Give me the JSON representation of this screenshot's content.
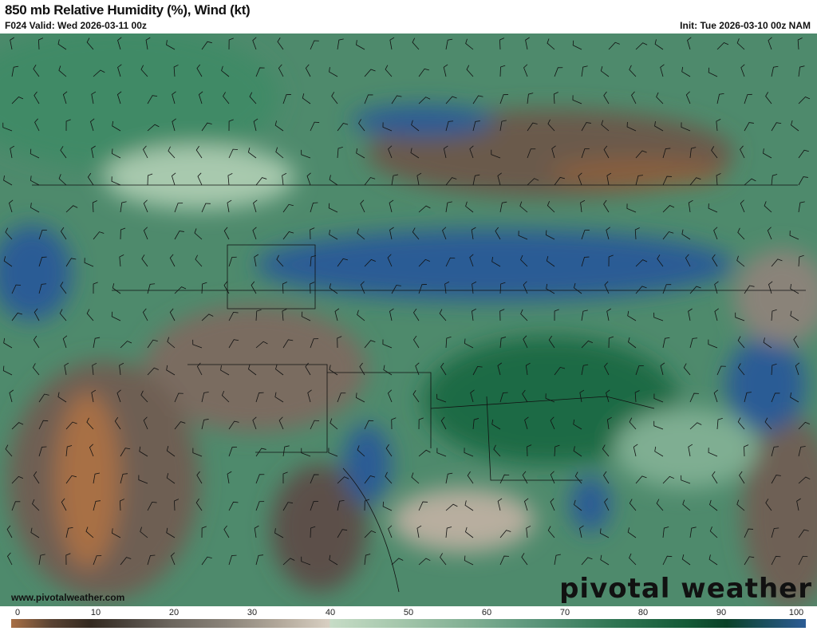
{
  "header": {
    "title": "850 mb Relative Humidity (%), Wind (kt)",
    "valid": "F024 Valid: Wed 2026-03-11 00z",
    "init": "Init: Tue 2026-03-10 00z NAM"
  },
  "map": {
    "watermark_url": "www.pivotalweather.com",
    "brand": "pivotal weather"
  },
  "colorbar": {
    "ticks": [
      "0",
      "10",
      "20",
      "30",
      "40",
      "50",
      "60",
      "70",
      "80",
      "90",
      "100"
    ],
    "colors": {
      "0": "#a86f45",
      "10": "#33291f",
      "40_low": "#d8cfc2",
      "40_high": "#c6dcc6",
      "90": "#0a4128",
      "100": "#2c5c95"
    }
  }
}
